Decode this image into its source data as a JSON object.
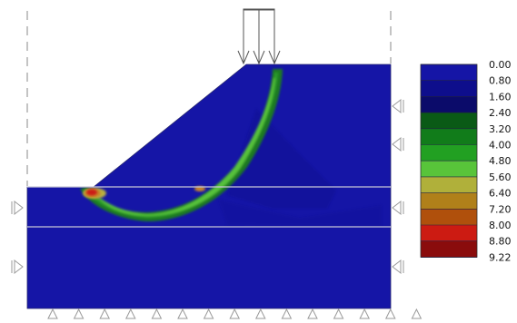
{
  "colors": {
    "soil": "#1515a6",
    "soil_dark": "#1010a0",
    "band_outer": "#1a7a24",
    "band_mid": "#2b9a2a",
    "band_inner": "#57c23a",
    "hot_red": "#cc1b12",
    "hot_orange": "#c8862a",
    "hot_yellow": "#b8b040",
    "layer_line": "#c8c8d8",
    "support": "#9a9a9a",
    "boundary": "#8a8a8a"
  },
  "legend": {
    "levels": [
      {
        "label": "0.00",
        "color": "#1515a6"
      },
      {
        "label": "0.80",
        "color": "#0e0e8c"
      },
      {
        "label": "1.60",
        "color": "#0b0b6a"
      },
      {
        "label": "2.40",
        "color": "#0a5a16"
      },
      {
        "label": "3.20",
        "color": "#117c1a"
      },
      {
        "label": "4.00",
        "color": "#22a022"
      },
      {
        "label": "4.80",
        "color": "#58c43a"
      },
      {
        "label": "5.60",
        "color": "#b0b03a"
      },
      {
        "label": "6.40",
        "color": "#b0801a"
      },
      {
        "label": "7.20",
        "color": "#b0500c"
      },
      {
        "label": "8.00",
        "color": "#cc1b12"
      },
      {
        "label": "8.80",
        "color": "#8a0c0c"
      },
      {
        "label": "9.22",
        "color": "#5a0808"
      }
    ]
  }
}
